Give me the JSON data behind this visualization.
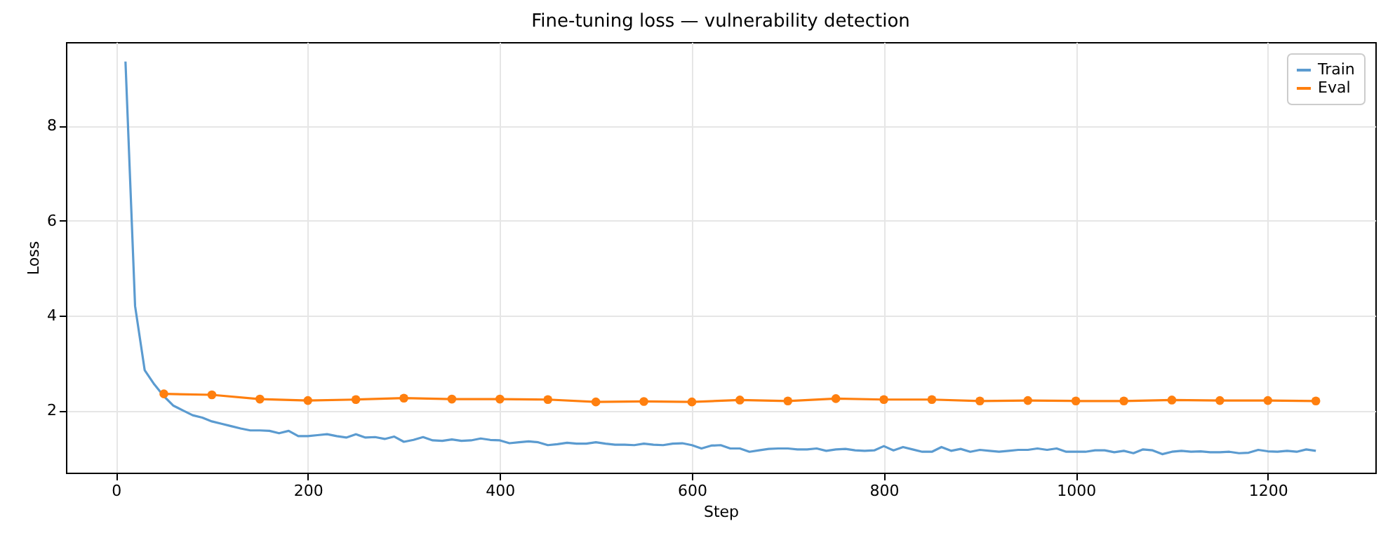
{
  "chart_data": {
    "type": "line",
    "title": "Fine-tuning loss — vulnerability detection",
    "xlabel": "Step",
    "ylabel": "Loss",
    "xlim": [
      -52,
      1312
    ],
    "ylim": [
      0.69,
      9.76
    ],
    "xticks": [
      0,
      200,
      400,
      600,
      800,
      1000,
      1200
    ],
    "yticks": [
      2,
      4,
      6,
      8
    ],
    "grid": true,
    "legend": "top right",
    "series": [
      {
        "name": "Train",
        "color": "#5b9bd0",
        "marker": "none",
        "x": [
          10,
          20,
          30,
          40,
          50,
          60,
          70,
          80,
          90,
          100,
          110,
          120,
          130,
          140,
          150,
          160,
          170,
          180,
          190,
          200,
          210,
          220,
          230,
          240,
          250,
          260,
          270,
          280,
          290,
          300,
          310,
          320,
          330,
          340,
          350,
          360,
          370,
          380,
          390,
          400,
          410,
          420,
          430,
          440,
          450,
          460,
          470,
          480,
          490,
          500,
          510,
          520,
          530,
          540,
          550,
          560,
          570,
          580,
          590,
          600,
          610,
          620,
          630,
          640,
          650,
          660,
          670,
          680,
          690,
          700,
          710,
          720,
          730,
          740,
          750,
          760,
          770,
          780,
          790,
          800,
          810,
          820,
          830,
          840,
          850,
          860,
          870,
          880,
          890,
          900,
          910,
          920,
          930,
          940,
          950,
          960,
          970,
          980,
          990,
          1000,
          1010,
          1020,
          1030,
          1040,
          1050,
          1060,
          1070,
          1080,
          1090,
          1100,
          1110,
          1120,
          1130,
          1140,
          1150,
          1160,
          1170,
          1180,
          1190,
          1200,
          1210,
          1220,
          1230,
          1240,
          1250
        ],
        "values": [
          9.35,
          4.2,
          2.85,
          2.55,
          2.3,
          2.1,
          2.0,
          1.9,
          1.85,
          1.77,
          1.72,
          1.67,
          1.62,
          1.58,
          1.58,
          1.57,
          1.52,
          1.57,
          1.46,
          1.46,
          1.48,
          1.5,
          1.46,
          1.43,
          1.5,
          1.43,
          1.44,
          1.4,
          1.45,
          1.34,
          1.38,
          1.44,
          1.37,
          1.36,
          1.39,
          1.36,
          1.37,
          1.41,
          1.38,
          1.37,
          1.31,
          1.33,
          1.35,
          1.33,
          1.27,
          1.29,
          1.32,
          1.3,
          1.3,
          1.33,
          1.3,
          1.28,
          1.28,
          1.27,
          1.3,
          1.28,
          1.27,
          1.3,
          1.31,
          1.27,
          1.2,
          1.26,
          1.27,
          1.2,
          1.2,
          1.13,
          1.16,
          1.19,
          1.2,
          1.2,
          1.18,
          1.18,
          1.2,
          1.15,
          1.18,
          1.19,
          1.16,
          1.15,
          1.16,
          1.25,
          1.16,
          1.23,
          1.18,
          1.13,
          1.13,
          1.23,
          1.15,
          1.19,
          1.13,
          1.17,
          1.15,
          1.13,
          1.15,
          1.17,
          1.17,
          1.2,
          1.17,
          1.2,
          1.13,
          1.13,
          1.13,
          1.16,
          1.16,
          1.12,
          1.15,
          1.1,
          1.18,
          1.16,
          1.08,
          1.13,
          1.15,
          1.13,
          1.14,
          1.12,
          1.12,
          1.13,
          1.1,
          1.11,
          1.17,
          1.14,
          1.13,
          1.15,
          1.13,
          1.18,
          1.15
        ]
      },
      {
        "name": "Eval",
        "color": "#ff7f0e",
        "marker": "circle",
        "x": [
          50,
          100,
          150,
          200,
          250,
          300,
          350,
          400,
          450,
          500,
          550,
          600,
          650,
          700,
          750,
          800,
          850,
          900,
          950,
          1000,
          1050,
          1100,
          1150,
          1200,
          1250
        ],
        "values": [
          2.35,
          2.33,
          2.24,
          2.21,
          2.23,
          2.26,
          2.24,
          2.24,
          2.23,
          2.18,
          2.19,
          2.18,
          2.22,
          2.2,
          2.25,
          2.23,
          2.23,
          2.2,
          2.21,
          2.2,
          2.2,
          2.22,
          2.21,
          2.21,
          2.2
        ]
      }
    ]
  }
}
